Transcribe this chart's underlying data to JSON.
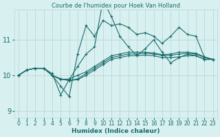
{
  "title": "Courbe de l'humidex pour Hoek Van Holland",
  "xlabel": "Humidex (Indice chaleur)",
  "bg_color": "#d8f0f0",
  "line_color": "#1a6b6b",
  "grid_color": "#b8d8d8",
  "xlim": [
    -0.5,
    23.5
  ],
  "ylim": [
    8.8,
    11.85
  ],
  "yticks": [
    9,
    10,
    11
  ],
  "xticks": [
    0,
    1,
    2,
    3,
    4,
    5,
    6,
    7,
    8,
    9,
    10,
    11,
    12,
    13,
    14,
    15,
    16,
    17,
    18,
    19,
    20,
    21,
    22,
    23
  ],
  "series": [
    [
      10.0,
      10.15,
      10.2,
      10.2,
      10.05,
      9.45,
      9.88,
      10.25,
      10.6,
      10.8,
      12.1,
      11.65,
      11.1,
      10.8,
      10.55,
      10.75,
      11.0,
      10.65,
      10.35,
      10.5,
      10.6,
      10.55,
      10.45,
      10.45
    ],
    [
      10.0,
      10.15,
      10.2,
      10.2,
      10.0,
      9.7,
      9.4,
      10.6,
      11.4,
      11.1,
      11.55,
      11.4,
      11.45,
      11.35,
      11.15,
      11.2,
      11.1,
      10.9,
      11.1,
      11.35,
      11.15,
      11.1,
      10.5,
      10.45
    ],
    [
      10.0,
      10.15,
      10.2,
      10.2,
      10.0,
      9.88,
      9.9,
      10.0,
      10.1,
      10.25,
      10.4,
      10.55,
      10.6,
      10.65,
      10.65,
      10.65,
      10.63,
      10.58,
      10.6,
      10.65,
      10.65,
      10.62,
      10.52,
      10.45
    ],
    [
      10.0,
      10.15,
      10.2,
      10.2,
      10.0,
      9.9,
      9.86,
      9.9,
      10.05,
      10.2,
      10.35,
      10.5,
      10.55,
      10.6,
      10.6,
      10.62,
      10.6,
      10.56,
      10.56,
      10.6,
      10.62,
      10.6,
      10.5,
      10.45
    ],
    [
      10.0,
      10.15,
      10.2,
      10.2,
      10.0,
      9.9,
      9.85,
      9.88,
      10.0,
      10.15,
      10.3,
      10.45,
      10.5,
      10.55,
      10.55,
      10.57,
      10.55,
      10.5,
      10.5,
      10.52,
      10.55,
      10.55,
      10.45,
      10.45
    ]
  ]
}
